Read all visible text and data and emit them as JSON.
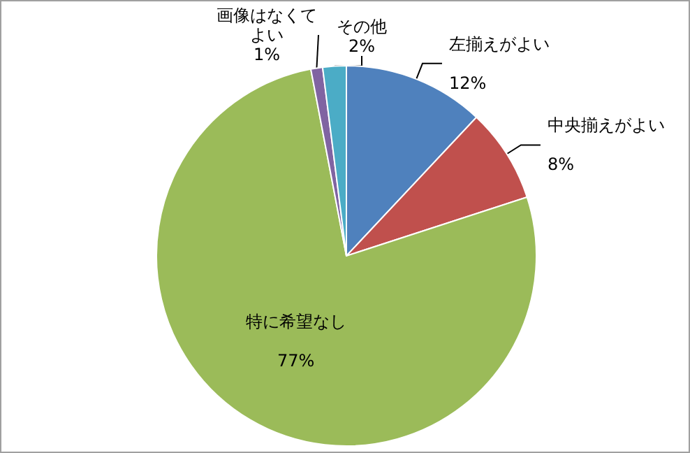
{
  "chart_data": {
    "type": "pie",
    "categories": [
      "左揃えがよい",
      "中央揃えがよい",
      "特に希望なし",
      "画像はなくてよい",
      "その他"
    ],
    "values": [
      12,
      8,
      77,
      1,
      2
    ],
    "colors": [
      "#4f81bd",
      "#c0504d",
      "#9bbb59",
      "#8064a2",
      "#4bacc6"
    ],
    "value_labels": [
      "12%",
      "8%",
      "77%",
      "1%",
      "2%"
    ],
    "legend": false
  }
}
